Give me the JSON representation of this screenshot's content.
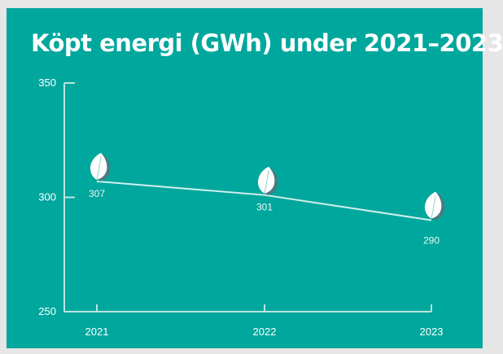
{
  "chart_data": {
    "type": "line",
    "title": "Köpt energi (GWh) under 2021–2023",
    "categories": [
      "2021",
      "2022",
      "2023"
    ],
    "series": [
      {
        "values": [
          307,
          301,
          290
        ]
      }
    ],
    "data_labels": [
      "307",
      "301",
      "290"
    ],
    "y_ticks": [
      250,
      300,
      350
    ],
    "ylim": [
      250,
      350
    ],
    "xlabel": "",
    "ylabel": "",
    "grid": false,
    "legend": "none",
    "marker_icon": "leaf-icon"
  },
  "colors": {
    "background": "#00a79d",
    "line": "#d3f0ec",
    "axis": "#b7e6e1",
    "marker_fill": "#ffffff",
    "marker_shadow": "#4d7a80"
  }
}
